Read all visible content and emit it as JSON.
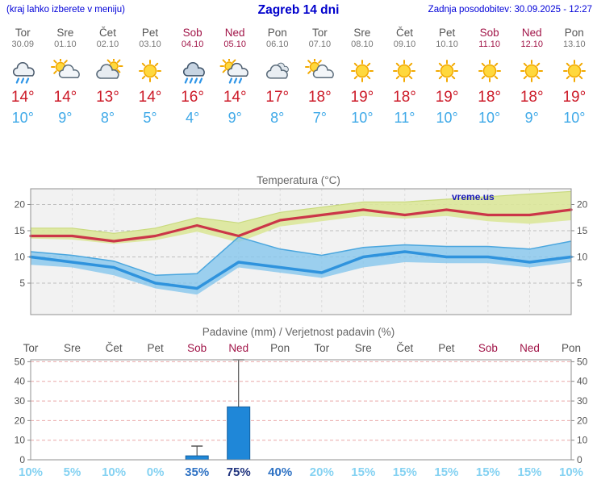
{
  "header": {
    "left_note": "(kraj lahko izberete v meniju)",
    "title": "Zagreb 14 dni",
    "updated": "Zadnja posodobitev: 30.09.2025 - 12:27"
  },
  "watermark": "vreme.us",
  "colors": {
    "link_blue": "#0000d8",
    "title_blue": "#0000cc",
    "max_temp_red": "#cc1a28",
    "min_temp_blue": "#3fa9e8",
    "weekend_maroon": "#a11548",
    "weekday_gray": "#555555"
  },
  "days": [
    {
      "name": "Tor",
      "date": "30.09",
      "weekend": false,
      "icon": "cloud-rain",
      "tmax_label": "14°",
      "tmin_label": "10°"
    },
    {
      "name": "Sre",
      "date": "01.10",
      "weekend": false,
      "icon": "sun-cloud",
      "tmax_label": "14°",
      "tmin_label": "9°"
    },
    {
      "name": "Čet",
      "date": "02.10",
      "weekend": false,
      "icon": "cloud-sun",
      "tmax_label": "13°",
      "tmin_label": "8°"
    },
    {
      "name": "Pet",
      "date": "03.10",
      "weekend": false,
      "icon": "sun",
      "tmax_label": "14°",
      "tmin_label": "5°"
    },
    {
      "name": "Sob",
      "date": "04.10",
      "weekend": true,
      "icon": "rain",
      "tmax_label": "16°",
      "tmin_label": "4°"
    },
    {
      "name": "Ned",
      "date": "05.10",
      "weekend": true,
      "icon": "sun-rain",
      "tmax_label": "14°",
      "tmin_label": "9°"
    },
    {
      "name": "Pon",
      "date": "06.10",
      "weekend": false,
      "icon": "cloud",
      "tmax_label": "17°",
      "tmin_label": "8°"
    },
    {
      "name": "Tor",
      "date": "07.10",
      "weekend": false,
      "icon": "sun-cloud",
      "tmax_label": "18°",
      "tmin_label": "7°"
    },
    {
      "name": "Sre",
      "date": "08.10",
      "weekend": false,
      "icon": "sun",
      "tmax_label": "19°",
      "tmin_label": "10°"
    },
    {
      "name": "Čet",
      "date": "09.10",
      "weekend": false,
      "icon": "sun",
      "tmax_label": "18°",
      "tmin_label": "11°"
    },
    {
      "name": "Pet",
      "date": "10.10",
      "weekend": false,
      "icon": "sun",
      "tmax_label": "19°",
      "tmin_label": "10°"
    },
    {
      "name": "Sob",
      "date": "11.10",
      "weekend": true,
      "icon": "sun",
      "tmax_label": "18°",
      "tmin_label": "10°"
    },
    {
      "name": "Ned",
      "date": "12.10",
      "weekend": true,
      "icon": "sun",
      "tmax_label": "18°",
      "tmin_label": "9°"
    },
    {
      "name": "Pon",
      "date": "13.10",
      "weekend": false,
      "icon": "sun",
      "tmax_label": "19°",
      "tmin_label": "10°"
    }
  ],
  "chart_data": [
    {
      "type": "line",
      "title": "Temperatura (°C)",
      "x_labels": [
        "Tor",
        "Sre",
        "Čet",
        "Pet",
        "Sob",
        "Ned",
        "Pon",
        "Tor",
        "Sre",
        "Čet",
        "Pet",
        "Sob",
        "Ned",
        "Pon"
      ],
      "ylim": [
        -1,
        23
      ],
      "yticks": [
        5,
        10,
        15,
        20
      ],
      "grid": true,
      "legend": false,
      "series": [
        {
          "name": "max-temp",
          "color": "#cb3648",
          "values": [
            14,
            14,
            13,
            14,
            16,
            14,
            17,
            18,
            19,
            18,
            19,
            18,
            18,
            19
          ]
        },
        {
          "name": "min-temp",
          "color": "#2f93dd",
          "values": [
            10,
            9,
            8,
            5,
            4,
            9,
            8,
            7,
            10,
            11,
            10,
            10,
            9,
            10
          ]
        }
      ],
      "bands": [
        {
          "name": "max-temp-spread",
          "color": "#dce79a",
          "upper": [
            15.5,
            15.5,
            14.5,
            15.5,
            17.5,
            16.5,
            18.5,
            19.5,
            20.5,
            20.5,
            21,
            21.5,
            22,
            22.5
          ],
          "lower": [
            13.5,
            13.3,
            12.5,
            13.2,
            14.8,
            12.8,
            15.8,
            16.8,
            17.8,
            17.3,
            17.8,
            16.8,
            16.3,
            17
          ]
        },
        {
          "name": "min-temp-spread",
          "color": "#85c6ec",
          "upper": [
            11,
            10.3,
            9.2,
            6.5,
            6.8,
            13.8,
            11.5,
            10.3,
            11.8,
            12.3,
            12,
            12,
            11.5,
            13
          ],
          "lower": [
            8.5,
            8,
            6.5,
            4,
            2.8,
            8,
            7,
            6,
            8,
            9,
            8.8,
            8.8,
            8,
            9
          ]
        }
      ]
    },
    {
      "type": "bar",
      "title": "Padavine (mm) / Verjetnost padavin (%)",
      "x_labels": [
        "Tor",
        "Sre",
        "Čet",
        "Pet",
        "Sob",
        "Ned",
        "Pon",
        "Tor",
        "Sre",
        "Čet",
        "Pet",
        "Sob",
        "Ned",
        "Pon"
      ],
      "ylim": [
        0,
        51
      ],
      "yticks": [
        0,
        10,
        20,
        30,
        40,
        50
      ],
      "grid": true,
      "bar_color": "#1f87d8",
      "bar_edge": "#135f9e",
      "whisker_color": "#555555",
      "grid_color": "#e9a9a9",
      "precip_mm": [
        0,
        0,
        0,
        0,
        2,
        27,
        0,
        0,
        0,
        0,
        0,
        0,
        0,
        0
      ],
      "precip_max_mm": [
        0,
        0,
        0,
        0,
        7,
        51,
        0,
        0,
        0,
        0,
        0,
        0,
        0,
        0
      ],
      "probability_pct": [
        10,
        5,
        10,
        0,
        35,
        75,
        40,
        20,
        15,
        15,
        15,
        15,
        15,
        10
      ],
      "probability_labels": [
        "10%",
        "5%",
        "10%",
        "0%",
        "35%",
        "75%",
        "40%",
        "20%",
        "15%",
        "15%",
        "15%",
        "15%",
        "15%",
        "10%"
      ],
      "probability_colors": {
        "high": "#22357f",
        "medium": "#2e72c4",
        "low": "#85d2f2"
      }
    }
  ]
}
